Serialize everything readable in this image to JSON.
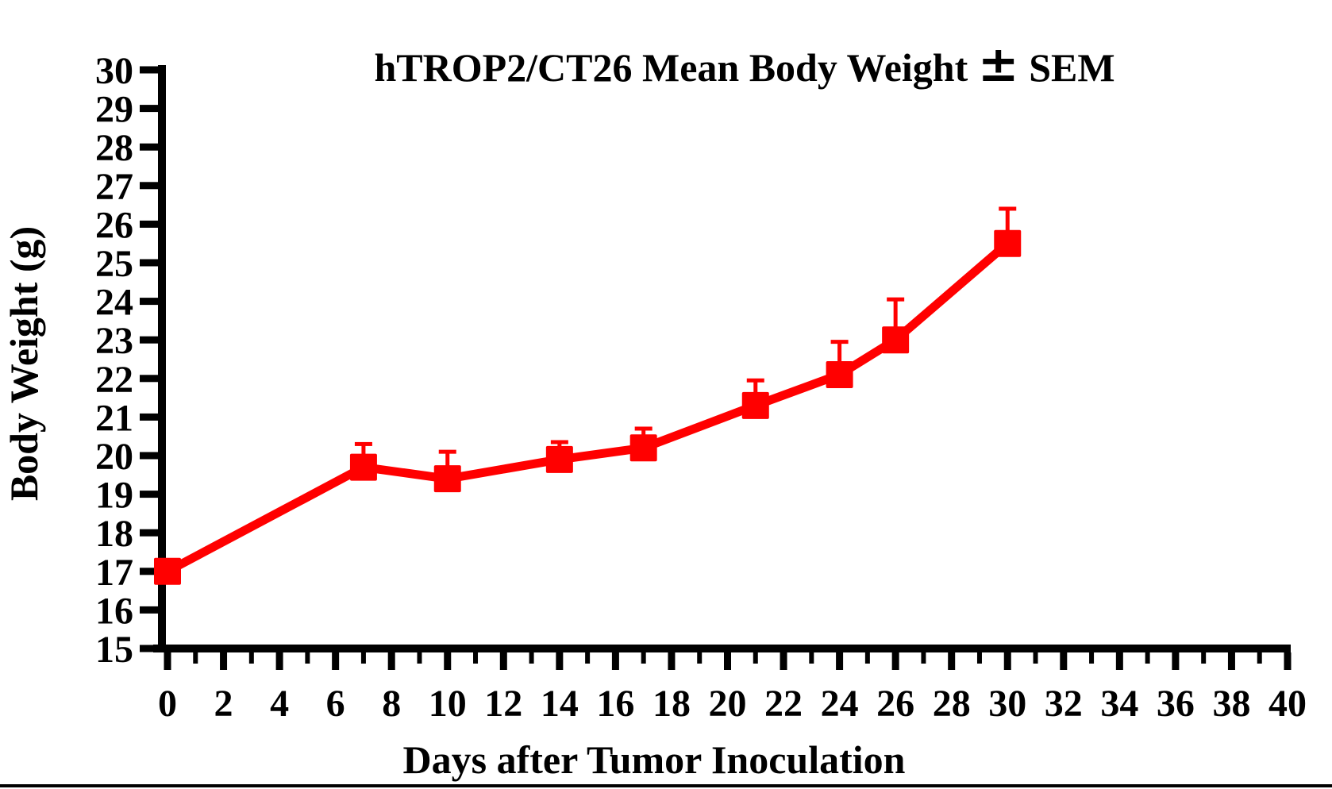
{
  "page": {
    "background": "#ffffff",
    "bottom_border_color": "#000000"
  },
  "chart_data": {
    "type": "line",
    "title": "hTROP2/CT26 Mean Body Weight ± SEM",
    "xlabel": "Days after Tumor Inoculation",
    "ylabel": "Body Weight (g)",
    "x": [
      0,
      7,
      10,
      14,
      17,
      21,
      24,
      26,
      30
    ],
    "series": [
      {
        "name": "hTROP2/CT26 mean body weight",
        "values": [
          17.0,
          19.7,
          19.4,
          19.9,
          20.2,
          21.3,
          22.1,
          23.0,
          25.5
        ],
        "sem_upper": [
          0.1,
          0.6,
          0.7,
          0.45,
          0.5,
          0.65,
          0.85,
          1.05,
          0.9
        ],
        "color": "#ff0000",
        "marker": "square"
      }
    ],
    "xlim": [
      0,
      40
    ],
    "ylim": [
      15,
      30
    ],
    "x_tick_step_major": 2,
    "x_tick_step_minor": 1,
    "y_tick_step": 1,
    "x_tick_labels": [
      "0",
      "2",
      "4",
      "6",
      "8",
      "10",
      "12",
      "14",
      "16",
      "18",
      "20",
      "22",
      "24",
      "26",
      "28",
      "30",
      "32",
      "34",
      "36",
      "38",
      "40"
    ],
    "y_tick_labels": [
      "15",
      "16",
      "17",
      "18",
      "19",
      "20",
      "21",
      "22",
      "23",
      "24",
      "25",
      "26",
      "27",
      "28",
      "29",
      "30"
    ],
    "grid": false,
    "legend": "none",
    "error_bars": "upper-only",
    "axis_color": "#000000"
  }
}
